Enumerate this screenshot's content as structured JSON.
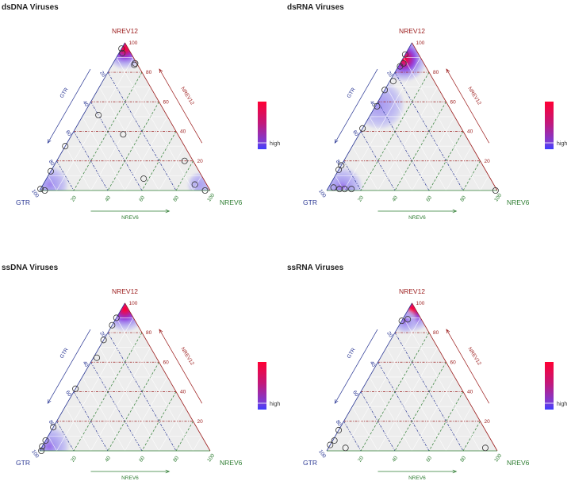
{
  "figure": {
    "colors": {
      "nrev12": "#9b1b1b",
      "nrev6": "#2e7d32",
      "gtr": "#283593",
      "density_high": "#ff0033",
      "density_mid": "#c2187a",
      "density_low": "#3d3dff",
      "density_faint": "#c9c9f4",
      "plot_bg": "#ededed"
    }
  },
  "chart_data": [
    {
      "type": "scatter",
      "subtype": "ternary",
      "title": "dsDNA Viruses",
      "axes": {
        "top": "NREV12",
        "left": "GTR",
        "right": "NREV6",
        "top_axis_name": "NREV12",
        "left_axis_name": "GTR",
        "bottom_axis_name": "NREV6"
      },
      "ticks": [
        "20",
        "40",
        "60",
        "80",
        "100"
      ],
      "legend_label": "high",
      "points": [
        {
          "gtr": 4,
          "nrev6": 0,
          "nrev12": 96
        },
        {
          "gtr": 5,
          "nrev6": 2,
          "nrev12": 93
        },
        {
          "gtr": 1,
          "nrev6": 13,
          "nrev12": 86
        },
        {
          "gtr": 2,
          "nrev6": 13,
          "nrev12": 85
        },
        {
          "gtr": 70,
          "nrev6": 0,
          "nrev12": 30
        },
        {
          "gtr": 87,
          "nrev6": 0,
          "nrev12": 13
        },
        {
          "gtr": 99,
          "nrev6": 0,
          "nrev12": 1
        },
        {
          "gtr": 97,
          "nrev6": 3,
          "nrev12": 0
        },
        {
          "gtr": 40,
          "nrev6": 9,
          "nrev12": 51
        },
        {
          "gtr": 32,
          "nrev6": 30,
          "nrev12": 38
        },
        {
          "gtr": 5,
          "nrev6": 75,
          "nrev12": 20
        },
        {
          "gtr": 35,
          "nrev6": 57,
          "nrev12": 8
        },
        {
          "gtr": 7,
          "nrev6": 89,
          "nrev12": 4
        },
        {
          "gtr": 3,
          "nrev6": 97,
          "nrev12": 0
        }
      ],
      "density_peaks": [
        {
          "gtr": 2,
          "nrev6": 2,
          "nrev12": 96,
          "level": 1.0,
          "spread": 10
        },
        {
          "gtr": 92,
          "nrev6": 4,
          "nrev12": 4,
          "level": 0.4,
          "spread": 9
        },
        {
          "gtr": 4,
          "nrev6": 92,
          "nrev12": 4,
          "level": 0.3,
          "spread": 6
        }
      ]
    },
    {
      "type": "scatter",
      "subtype": "ternary",
      "title": "dsRNA Viruses",
      "axes": {
        "top": "NREV12",
        "left": "GTR",
        "right": "NREV6",
        "top_axis_name": "NREV12",
        "left_axis_name": "GTR",
        "bottom_axis_name": "NREV6"
      },
      "ticks": [
        "20",
        "40",
        "60",
        "80",
        "100"
      ],
      "legend_label": "high",
      "points": [
        {
          "gtr": 8,
          "nrev6": 0,
          "nrev12": 92
        },
        {
          "gtr": 12,
          "nrev6": 2,
          "nrev12": 86
        },
        {
          "gtr": 15,
          "nrev6": 1,
          "nrev12": 84
        },
        {
          "gtr": 24,
          "nrev6": 2,
          "nrev12": 74
        },
        {
          "gtr": 32,
          "nrev6": 0,
          "nrev12": 68
        },
        {
          "gtr": 42,
          "nrev6": 1,
          "nrev12": 57
        },
        {
          "gtr": 58,
          "nrev6": 0,
          "nrev12": 42
        },
        {
          "gtr": 83,
          "nrev6": 0,
          "nrev12": 17
        },
        {
          "gtr": 86,
          "nrev6": 0,
          "nrev12": 14
        },
        {
          "gtr": 95,
          "nrev6": 3,
          "nrev12": 2
        },
        {
          "gtr": 92,
          "nrev6": 7,
          "nrev12": 1
        },
        {
          "gtr": 89,
          "nrev6": 10,
          "nrev12": 1
        },
        {
          "gtr": 85,
          "nrev6": 14,
          "nrev12": 1
        },
        {
          "gtr": 1,
          "nrev6": 99,
          "nrev12": 0
        }
      ],
      "density_peaks": [
        {
          "gtr": 10,
          "nrev6": 1,
          "nrev12": 89,
          "level": 1.0,
          "spread": 11
        },
        {
          "gtr": 40,
          "nrev6": 2,
          "nrev12": 58,
          "level": 0.35,
          "spread": 12
        },
        {
          "gtr": 90,
          "nrev6": 8,
          "nrev12": 2,
          "level": 0.45,
          "spread": 10
        }
      ]
    },
    {
      "type": "scatter",
      "subtype": "ternary",
      "title": "ssDNA Viruses",
      "axes": {
        "top": "NREV12",
        "left": "GTR",
        "right": "NREV6",
        "top_axis_name": "NREV12",
        "left_axis_name": "GTR",
        "bottom_axis_name": "NREV6"
      },
      "ticks": [
        "20",
        "40",
        "60",
        "80",
        "100"
      ],
      "legend_label": "high",
      "points": [
        {
          "gtr": 10,
          "nrev6": 0,
          "nrev12": 90
        },
        {
          "gtr": 15,
          "nrev6": 0,
          "nrev12": 85
        },
        {
          "gtr": 25,
          "nrev6": 0,
          "nrev12": 75
        },
        {
          "gtr": 35,
          "nrev6": 2,
          "nrev12": 63
        },
        {
          "gtr": 58,
          "nrev6": 0,
          "nrev12": 42
        },
        {
          "gtr": 84,
          "nrev6": 0,
          "nrev12": 16
        },
        {
          "gtr": 93,
          "nrev6": 0,
          "nrev12": 7
        },
        {
          "gtr": 97,
          "nrev6": 0,
          "nrev12": 3
        },
        {
          "gtr": 99,
          "nrev6": 1,
          "nrev12": 0
        }
      ],
      "density_peaks": [
        {
          "gtr": 2,
          "nrev6": 2,
          "nrev12": 96,
          "level": 1.0,
          "spread": 11
        },
        {
          "gtr": 93,
          "nrev6": 4,
          "nrev12": 3,
          "level": 0.45,
          "spread": 10
        }
      ]
    },
    {
      "type": "scatter",
      "subtype": "ternary",
      "title": "ssRNA Viruses",
      "axes": {
        "top": "NREV12",
        "left": "GTR",
        "right": "NREV6",
        "top_axis_name": "NREV12",
        "left_axis_name": "GTR",
        "bottom_axis_name": "NREV6"
      },
      "ticks": [
        "20",
        "40",
        "60",
        "80",
        "100"
      ],
      "legend_label": "high",
      "points": [
        {
          "gtr": 8,
          "nrev6": 3,
          "nrev12": 89
        },
        {
          "gtr": 12,
          "nrev6": 0,
          "nrev12": 88
        },
        {
          "gtr": 86,
          "nrev6": 0,
          "nrev12": 14
        },
        {
          "gtr": 92,
          "nrev6": 1,
          "nrev12": 7
        },
        {
          "gtr": 96,
          "nrev6": 0,
          "nrev12": 4
        },
        {
          "gtr": 88,
          "nrev6": 10,
          "nrev12": 2
        },
        {
          "gtr": 6,
          "nrev6": 92,
          "nrev12": 2
        }
      ],
      "density_peaks": [
        {
          "gtr": 2,
          "nrev6": 2,
          "nrev12": 96,
          "level": 1.0,
          "spread": 11
        },
        {
          "gtr": 10,
          "nrev6": 2,
          "nrev12": 88,
          "level": 0.5,
          "spread": 6
        }
      ]
    }
  ]
}
